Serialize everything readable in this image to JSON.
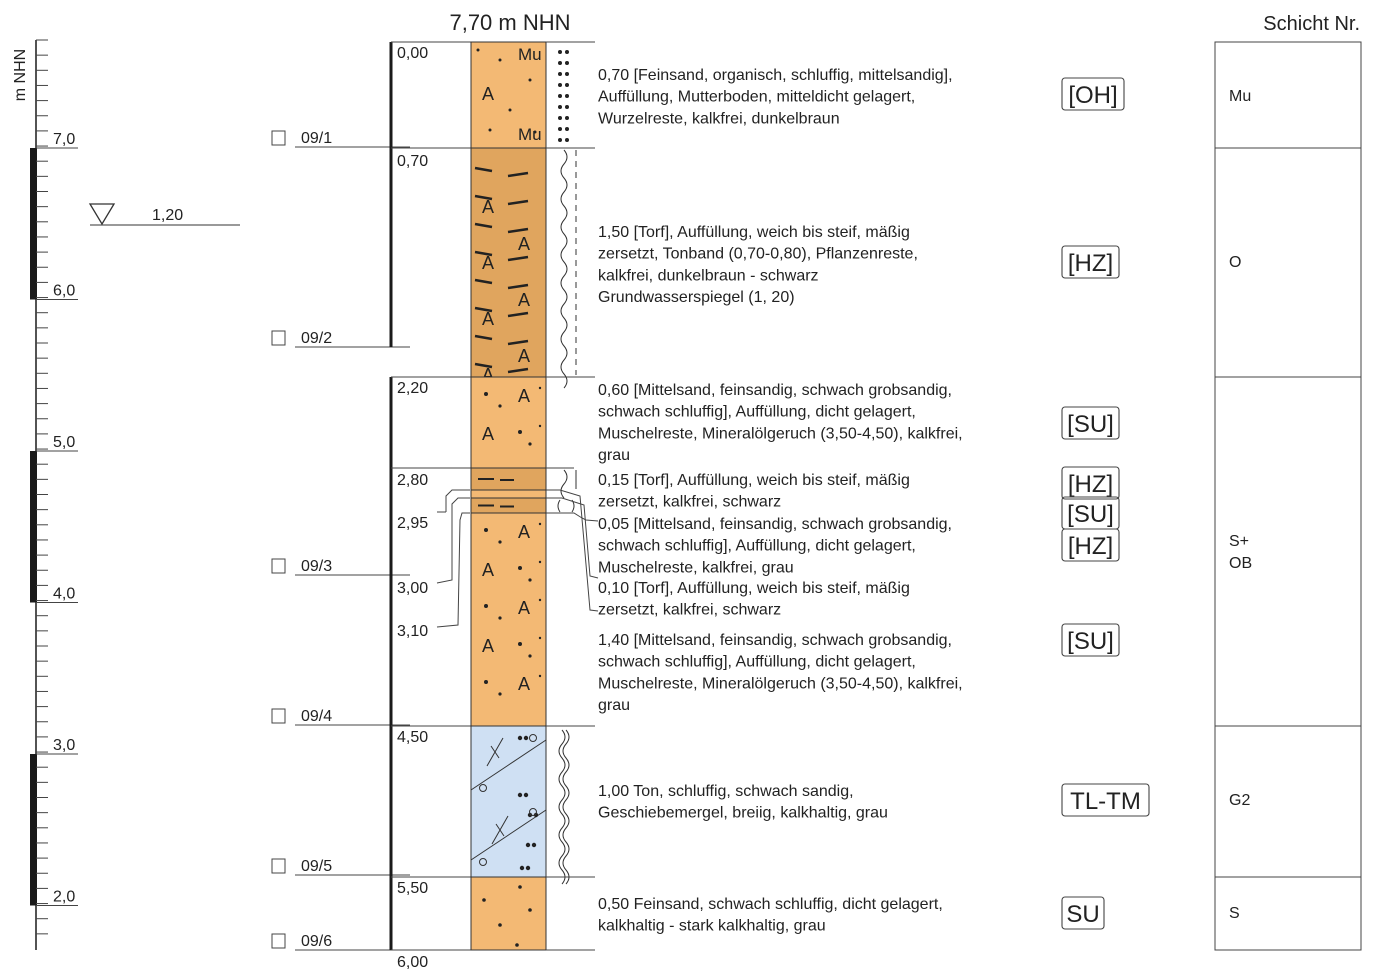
{
  "header": {
    "elevation_title": "7,70 m NHN",
    "axis_label": "m NHN",
    "layer_column_title": "Schicht Nr."
  },
  "elevation_axis": {
    "ticks": [
      {
        "value": 7.0,
        "label": "7,0"
      },
      {
        "value": 6.0,
        "label": "6,0"
      },
      {
        "value": 5.0,
        "label": "5,0"
      },
      {
        "value": 4.0,
        "label": "4,0"
      },
      {
        "value": 3.0,
        "label": "3,0"
      },
      {
        "value": 2.0,
        "label": "2,0"
      }
    ]
  },
  "groundwater": {
    "label": "1,20"
  },
  "samples": [
    {
      "id": "09/1"
    },
    {
      "id": "09/2"
    },
    {
      "id": "09/3"
    },
    {
      "id": "09/4"
    },
    {
      "id": "09/5"
    },
    {
      "id": "09/6"
    }
  ],
  "depth_labels": [
    "0,00",
    "0,70",
    "2,20",
    "2,80",
    "2,95",
    "3,00",
    "3,10",
    "4,50",
    "5,50",
    "6,00"
  ],
  "layer_descriptions": [
    {
      "lines": [
        "0,70 [Feinsand, organisch, schluffig, mittelsandig],",
        "Auffüllung, Mutterboden, mitteldicht gelagert,",
        "Wurzelreste, kalkfrei, dunkelbraun"
      ],
      "soil_class": "[OH]"
    },
    {
      "lines": [
        "1,50 [Torf], Auffüllung, weich bis steif, mäßig",
        "zersetzt, Tonband (0,70-0,80), Pflanzenreste,",
        "kalkfrei, dunkelbraun - schwarz",
        "Grundwasserspiegel (1, 20)"
      ],
      "soil_class": "[HZ]"
    },
    {
      "lines": [
        "0,60 [Mittelsand, feinsandig, schwach grobsandig,",
        "schwach schluffig], Auffüllung, dicht gelagert,",
        "Muschelreste, Mineralölgeruch (3,50-4,50), kalkfrei,",
        "grau"
      ],
      "soil_class": "[SU]"
    },
    {
      "lines": [
        "0,15 [Torf], Auffüllung, weich bis steif, mäßig",
        "zersetzt, kalkfrei, schwarz"
      ],
      "soil_class": "[HZ]"
    },
    {
      "lines": [
        "0,05 [Mittelsand, feinsandig, schwach grobsandig,",
        "schwach schluffig], Auffüllung, dicht gelagert,",
        "Muschelreste, kalkfrei, grau"
      ],
      "soil_class": "[SU]"
    },
    {
      "lines": [
        "0,10 [Torf], Auffüllung, weich bis steif, mäßig",
        "zersetzt, kalkfrei, schwarz"
      ],
      "soil_class": "[HZ]"
    },
    {
      "lines": [
        "1,40 [Mittelsand, feinsandig, schwach grobsandig,",
        "schwach schluffig], Auffüllung, dicht gelagert,",
        "Muschelreste, Mineralölgeruch (3,50-4,50), kalkfrei,",
        "grau"
      ],
      "soil_class": "[SU]"
    },
    {
      "lines": [
        "1,00 Ton, schluffig, schwach sandig,",
        "Geschiebemergel, breiig, kalkhaltig, grau"
      ],
      "soil_class": "TL-TM"
    },
    {
      "lines": [
        "0,50 Feinsand, schwach schluffig, dicht gelagert,",
        "kalkhaltig - stark kalkhaltig, grau"
      ],
      "soil_class": "SU"
    }
  ],
  "layer_numbers": [
    {
      "lines": [
        "Mu"
      ]
    },
    {
      "lines": [
        "O"
      ]
    },
    {
      "lines": [
        "S+",
        "OB"
      ]
    },
    {
      "lines": [
        "G2"
      ]
    },
    {
      "lines": [
        "S"
      ]
    }
  ],
  "colors": {
    "sand_fill": "#f3b974",
    "peat_fill": "#e0a55e",
    "clay_fill": "#cfe0f3",
    "outline": "#333333",
    "axis_bar": "#1a1a1a"
  },
  "pattern_symbols": {
    "fill_marker": "A",
    "topsoil_marker": "Mu"
  }
}
